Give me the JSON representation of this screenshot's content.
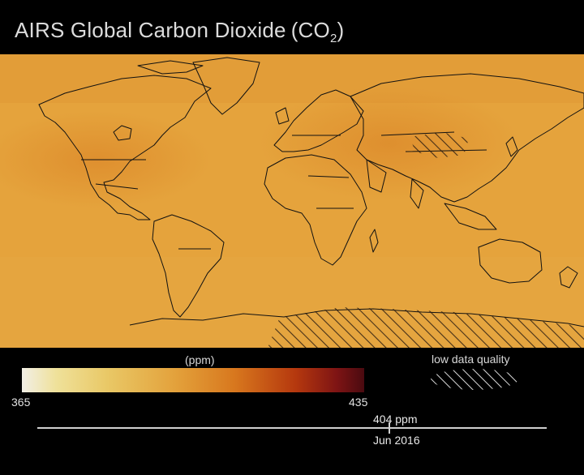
{
  "title": {
    "main": "AIRS Global Carbon Dioxide",
    "formula_open": "(CO",
    "formula_sub": "2",
    "formula_close": ")"
  },
  "legend": {
    "units": "(ppm)",
    "min": "365",
    "max": "435",
    "low_quality_label": "low data quality",
    "colors": [
      "#f2efe6",
      "#efe19a",
      "#e3a13b",
      "#d8781e",
      "#b5380e",
      "#4a0a10"
    ]
  },
  "timeline": {
    "value": "404 ppm",
    "date": "Jun 2016",
    "progress": 0.69
  },
  "map": {
    "background_color": "#e4a03a",
    "coastline_color": "#111111",
    "hatch_regions": [
      "Tibetan Plateau",
      "Antarctica"
    ]
  }
}
